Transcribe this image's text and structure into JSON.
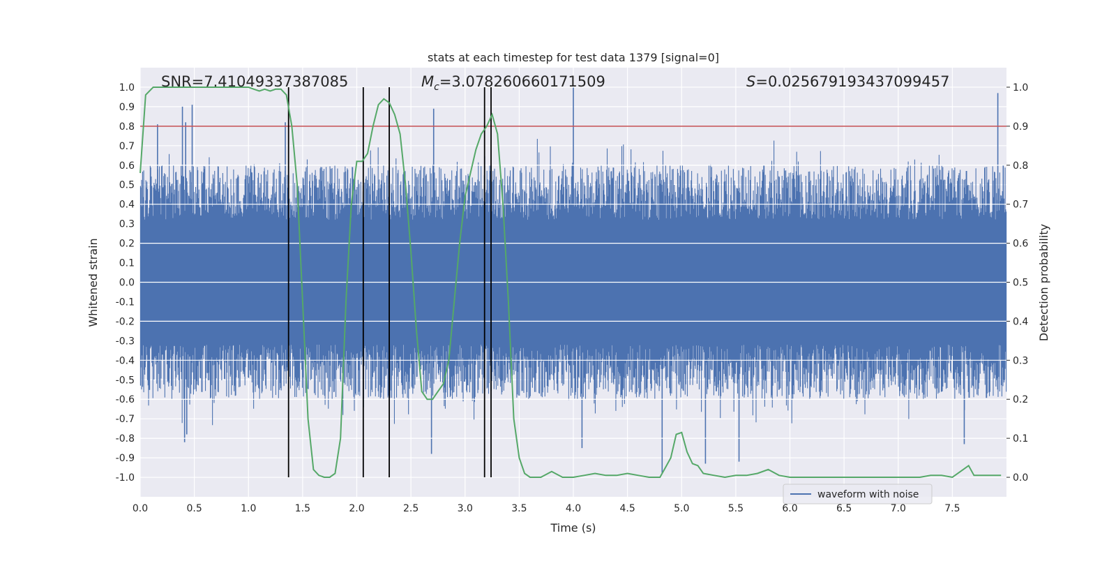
{
  "chart_data": {
    "type": "line",
    "title": "stats at each timestep for test data 1379 [signal=0]",
    "xlabel": "Time (s)",
    "ylabel_left": "Whitened strain",
    "ylabel_right": "Detection probability",
    "xlim": [
      0.0,
      8.0
    ],
    "ylim_left": [
      -1.1,
      1.1
    ],
    "ylim_right": [
      -0.05,
      1.05
    ],
    "x_ticks": [
      "0.0",
      "0.5",
      "1.0",
      "1.5",
      "2.0",
      "2.5",
      "3.0",
      "3.5",
      "4.0",
      "4.5",
      "5.0",
      "5.5",
      "6.0",
      "6.5",
      "7.0",
      "7.5"
    ],
    "x_tick_values": [
      0.0,
      0.5,
      1.0,
      1.5,
      2.0,
      2.5,
      3.0,
      3.5,
      4.0,
      4.5,
      5.0,
      5.5,
      6.0,
      6.5,
      7.0,
      7.5
    ],
    "y_left_ticks": [
      "1.0",
      "0.9",
      "0.8",
      "0.7",
      "0.6",
      "0.5",
      "0.4",
      "0.3",
      "0.2",
      "0.1",
      "0.0",
      "-0.1",
      "-0.2",
      "-0.3",
      "-0.4",
      "-0.5",
      "-0.6",
      "-0.7",
      "-0.8",
      "-0.9",
      "-1.0"
    ],
    "y_left_tick_values": [
      1.0,
      0.9,
      0.8,
      0.7,
      0.6,
      0.5,
      0.4,
      0.3,
      0.2,
      0.1,
      0.0,
      -0.1,
      -0.2,
      -0.3,
      -0.4,
      -0.5,
      -0.6,
      -0.7,
      -0.8,
      -0.9,
      -1.0
    ],
    "y_right_ticks": [
      "1.0",
      "0.9",
      "0.8",
      "0.7",
      "0.6",
      "0.5",
      "0.4",
      "0.3",
      "0.2",
      "0.1",
      "0.0"
    ],
    "y_right_tick_values": [
      1.0,
      0.9,
      0.8,
      0.7,
      0.6,
      0.5,
      0.4,
      0.3,
      0.2,
      0.1,
      0.0
    ],
    "annotations": {
      "snr": "SNR=7.41049337387085",
      "mc_symbol": "M",
      "mc_subscript": "c",
      "mc_value": "=3.078260660171509",
      "s_symbol": "S",
      "s_value": "=0.025679193437099457"
    },
    "threshold": {
      "value": 0.9,
      "axis": "right",
      "color": "#c44e52"
    },
    "vertical_markers_s": [
      1.37,
      2.06,
      2.3,
      3.18,
      3.24
    ],
    "legend": {
      "label": "waveform with noise",
      "placement": "lower-right"
    },
    "waveform": {
      "name": "waveform with noise",
      "color": "#4c72b0",
      "description_values": "dense noise roughly within +/-0.55 strain",
      "spikes": [
        {
          "t": 0.39,
          "v": 0.9
        },
        {
          "t": 0.41,
          "v": -0.82
        },
        {
          "t": 0.42,
          "v": 0.82
        },
        {
          "t": 0.43,
          "v": -0.78
        },
        {
          "t": 0.48,
          "v": 0.91
        },
        {
          "t": 0.16,
          "v": 0.81
        },
        {
          "t": 1.34,
          "v": 0.82
        },
        {
          "t": 2.71,
          "v": 0.89
        },
        {
          "t": 2.69,
          "v": -0.88
        },
        {
          "t": 4.0,
          "v": 1.0
        },
        {
          "t": 4.08,
          "v": -0.85
        },
        {
          "t": 4.82,
          "v": -0.98
        },
        {
          "t": 5.22,
          "v": -0.93
        },
        {
          "t": 5.53,
          "v": -0.92
        },
        {
          "t": 7.61,
          "v": -0.83
        },
        {
          "t": 7.92,
          "v": 0.97
        },
        {
          "t": 7.97,
          "v": 0.6
        }
      ]
    },
    "probability": {
      "name": "detection probability",
      "color": "#55a868",
      "t": [
        0.0,
        0.05,
        0.12,
        0.2,
        0.3,
        0.4,
        0.5,
        0.6,
        0.7,
        0.8,
        0.9,
        1.0,
        1.05,
        1.1,
        1.15,
        1.2,
        1.25,
        1.3,
        1.35,
        1.4,
        1.45,
        1.5,
        1.55,
        1.6,
        1.65,
        1.7,
        1.75,
        1.8,
        1.85,
        1.9,
        1.95,
        2.0,
        2.05,
        2.1,
        2.15,
        2.2,
        2.25,
        2.3,
        2.35,
        2.4,
        2.45,
        2.5,
        2.55,
        2.6,
        2.65,
        2.7,
        2.75,
        2.8,
        2.85,
        2.9,
        2.95,
        3.0,
        3.05,
        3.1,
        3.15,
        3.2,
        3.25,
        3.3,
        3.35,
        3.4,
        3.45,
        3.5,
        3.55,
        3.6,
        3.65,
        3.7,
        3.8,
        3.9,
        4.0,
        4.1,
        4.2,
        4.3,
        4.4,
        4.5,
        4.6,
        4.7,
        4.8,
        4.85,
        4.9,
        4.95,
        5.0,
        5.05,
        5.1,
        5.15,
        5.2,
        5.3,
        5.4,
        5.5,
        5.6,
        5.7,
        5.8,
        5.9,
        6.0,
        6.1,
        6.2,
        6.4,
        6.6,
        6.8,
        7.0,
        7.2,
        7.3,
        7.4,
        7.5,
        7.6,
        7.65,
        7.7,
        7.8,
        7.9,
        7.95
      ],
      "p": [
        0.78,
        0.98,
        1.0,
        1.0,
        1.0,
        1.0,
        1.0,
        1.0,
        1.0,
        1.0,
        1.0,
        1.0,
        0.995,
        0.99,
        0.995,
        0.99,
        0.995,
        0.995,
        0.98,
        0.9,
        0.75,
        0.45,
        0.15,
        0.02,
        0.005,
        0.0,
        0.0,
        0.01,
        0.1,
        0.45,
        0.7,
        0.81,
        0.81,
        0.83,
        0.9,
        0.955,
        0.97,
        0.96,
        0.93,
        0.88,
        0.75,
        0.58,
        0.38,
        0.22,
        0.2,
        0.2,
        0.22,
        0.24,
        0.3,
        0.45,
        0.6,
        0.72,
        0.78,
        0.84,
        0.88,
        0.9,
        0.93,
        0.88,
        0.7,
        0.45,
        0.15,
        0.05,
        0.01,
        0.0,
        0.0,
        0.0,
        0.015,
        0.0,
        0.0,
        0.005,
        0.01,
        0.005,
        0.005,
        0.01,
        0.005,
        0.0,
        0.0,
        0.025,
        0.05,
        0.11,
        0.115,
        0.065,
        0.035,
        0.03,
        0.01,
        0.005,
        0.0,
        0.005,
        0.005,
        0.01,
        0.02,
        0.005,
        0.0,
        0.0,
        0.0,
        0.0,
        0.0,
        0.0,
        0.0,
        0.0,
        0.005,
        0.005,
        0.0,
        0.02,
        0.03,
        0.005,
        0.005,
        0.005,
        0.005
      ]
    }
  }
}
